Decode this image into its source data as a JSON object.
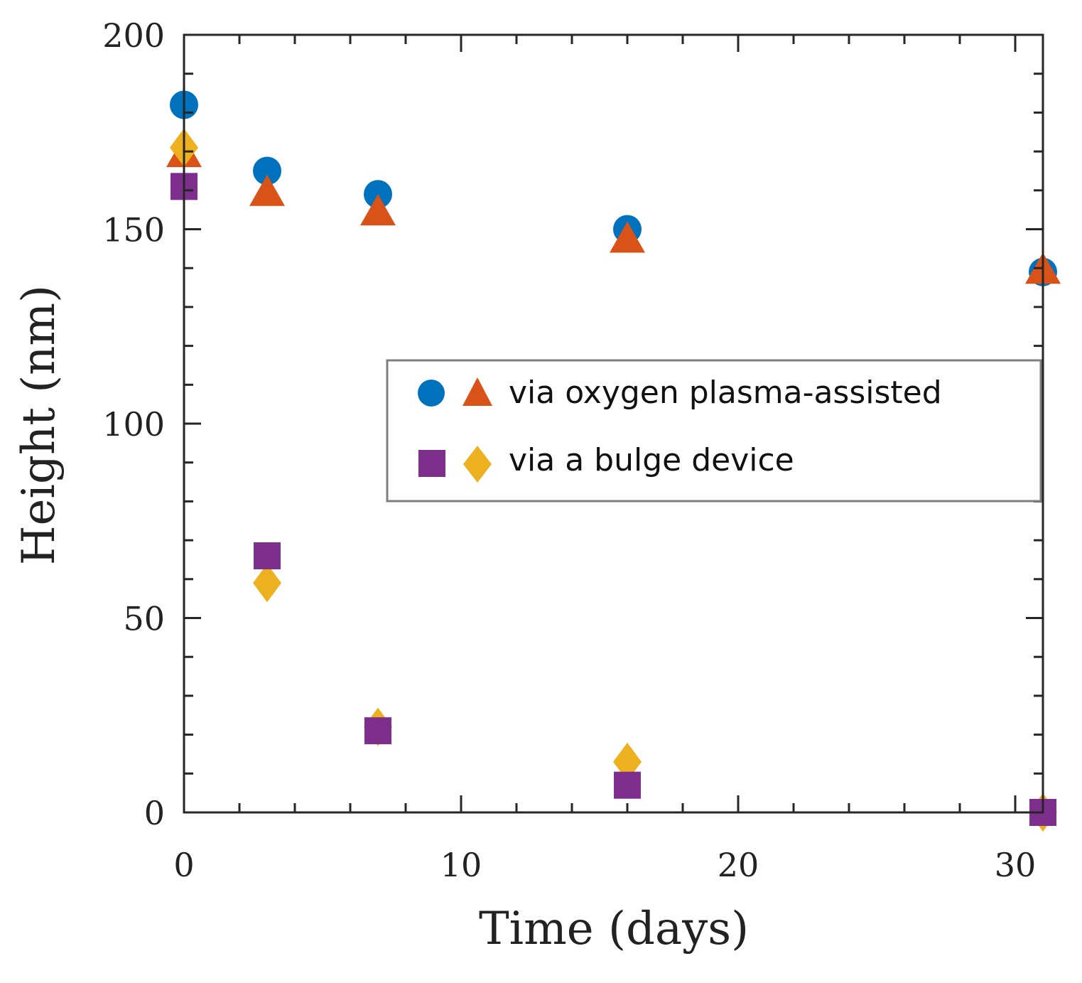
{
  "chart_data": {
    "type": "scatter",
    "title": "",
    "xlabel": "Time (days)",
    "ylabel": "Height (nm)",
    "xlim": [
      0,
      31
    ],
    "ylim": [
      0,
      200
    ],
    "xticks": [
      0,
      10,
      20,
      30
    ],
    "yticks": [
      0,
      50,
      100,
      150,
      200
    ],
    "grid": false,
    "legend_position": "center-right",
    "legend": [
      {
        "label": "via oxygen plasma-assisted",
        "markers": [
          "circle",
          "triangle"
        ]
      },
      {
        "label": "via a bulge device",
        "markers": [
          "square",
          "diamond"
        ]
      }
    ],
    "series": [
      {
        "name": "via oxygen plasma-assisted (circle)",
        "marker": "circle",
        "color": "#0072BD",
        "x": [
          0,
          3,
          7,
          16,
          31
        ],
        "y": [
          182,
          165,
          159,
          150,
          139
        ]
      },
      {
        "name": "via oxygen plasma-assisted (triangle)",
        "marker": "triangle",
        "color": "#D95319",
        "x": [
          0,
          3,
          7,
          16,
          31
        ],
        "y": [
          170,
          160,
          155,
          148,
          140
        ]
      },
      {
        "name": "via a bulge device (square)",
        "marker": "square",
        "color": "#7E2F8E",
        "x": [
          0,
          3,
          7,
          16,
          31
        ],
        "y": [
          161,
          66,
          21,
          7,
          0
        ]
      },
      {
        "name": "via a bulge device (diamond)",
        "marker": "diamond",
        "color": "#EDB120",
        "x": [
          0,
          3,
          7,
          16,
          31
        ],
        "y": [
          171,
          59,
          22,
          13,
          0
        ]
      }
    ]
  }
}
